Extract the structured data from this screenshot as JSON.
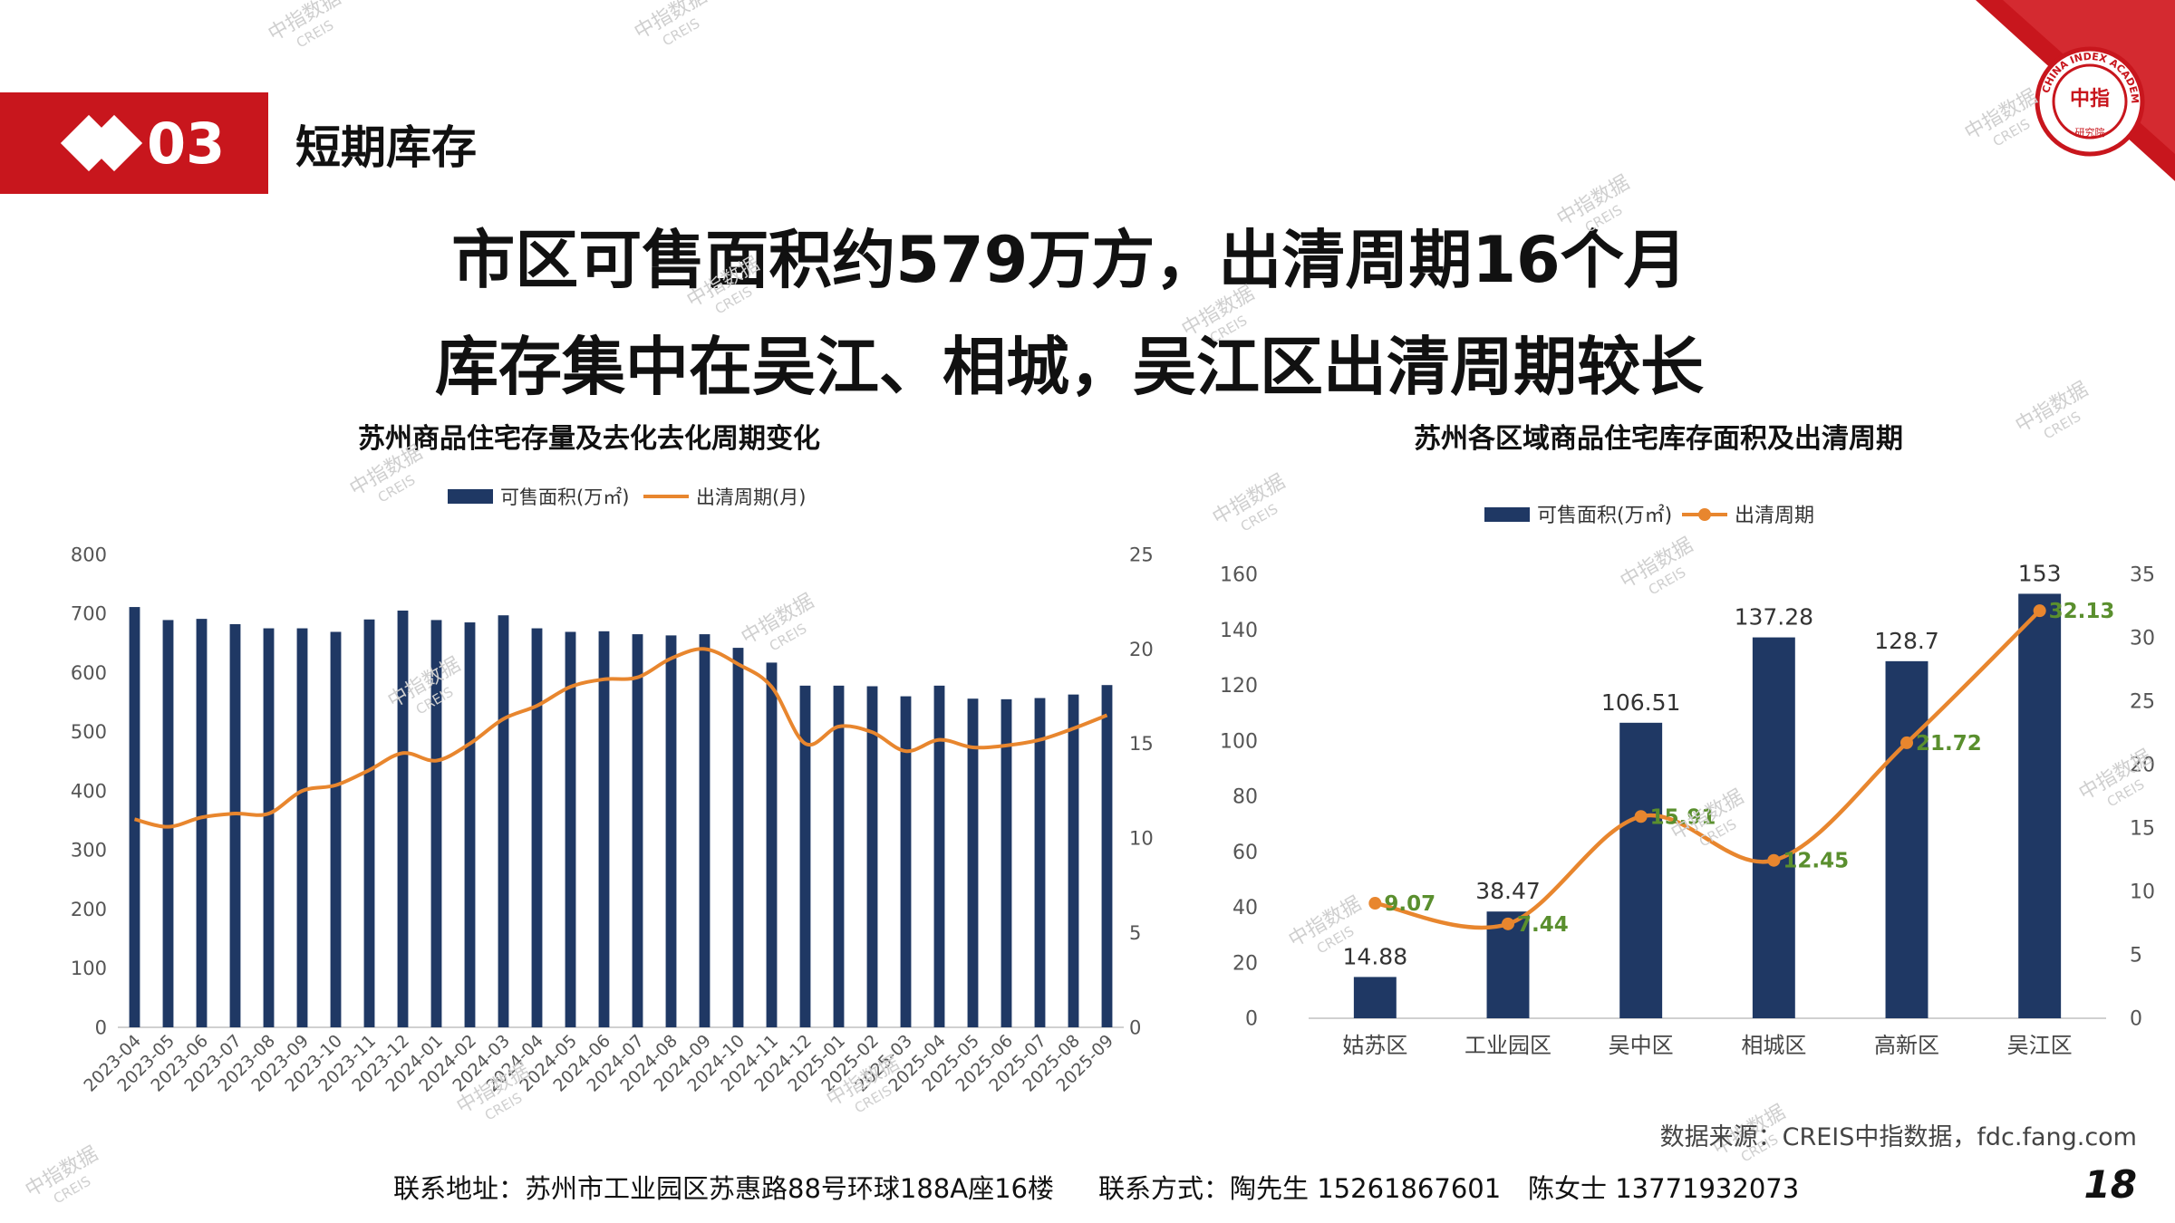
{
  "section": {
    "number": "03",
    "title": "短期库存"
  },
  "headlines": [
    "市区可售面积约579万方，出清周期16个月",
    "库存集中在吴江、相城，吴江区出清周期较长"
  ],
  "logo": {
    "ring_text": "CHINA INDEX ACADEMY",
    "center_text": "中指",
    "bottom_text": "研究院"
  },
  "watermark": {
    "main": "中指数据",
    "sub": "CREIS"
  },
  "colors": {
    "brand_red": "#c8161d",
    "bar": "#1f3864",
    "line": "#e8862e",
    "label_green": "#5a8f2e"
  },
  "chart_data": [
    {
      "type": "bar",
      "title": "苏州商品住宅存量及去化去化周期变化",
      "categories": [
        "2023-04",
        "2023-05",
        "2023-06",
        "2023-07",
        "2023-08",
        "2023-09",
        "2023-10",
        "2023-11",
        "2023-12",
        "2024-01",
        "2024-02",
        "2024-03",
        "2024-04",
        "2024-05",
        "2024-06",
        "2024-07",
        "2024-08",
        "2024-09",
        "2024-10",
        "2024-11",
        "2024-12",
        "2025-01",
        "2025-02",
        "2025-03",
        "2025-04",
        "2025-05",
        "2025-06",
        "2025-07",
        "2025-08",
        "2025-09"
      ],
      "series": [
        {
          "name": "可售面积(万㎡)",
          "type": "bar",
          "axis": "left",
          "values": [
            711,
            689,
            691,
            682,
            675,
            675,
            669,
            690,
            705,
            689,
            685,
            697,
            675,
            669,
            670,
            665,
            663,
            665,
            642,
            617,
            578,
            578,
            577,
            560,
            578,
            556,
            555,
            557,
            563,
            579
          ]
        },
        {
          "name": "出清周期(月)",
          "type": "line",
          "axis": "right",
          "values": [
            11.0,
            10.6,
            11.1,
            11.3,
            11.3,
            12.5,
            12.8,
            13.6,
            14.5,
            14.1,
            15.0,
            16.3,
            17.0,
            18.0,
            18.4,
            18.5,
            19.5,
            20.0,
            19.2,
            18.0,
            15.0,
            15.9,
            15.6,
            14.6,
            15.2,
            14.8,
            14.9,
            15.2,
            15.8,
            16.5
          ]
        }
      ],
      "y_left": {
        "min": 0,
        "max": 800,
        "ticks": [
          "0",
          "100",
          "200",
          "300",
          "400",
          "500",
          "600",
          "700",
          "800"
        ]
      },
      "y_right": {
        "min": 0,
        "max": 25,
        "ticks": [
          "0",
          "5",
          "10",
          "15",
          "20",
          "25"
        ]
      },
      "legend": "top-center",
      "grid": false
    },
    {
      "type": "bar",
      "title": "苏州各区域商品住宅库存面积及出清周期",
      "categories": [
        "姑苏区",
        "工业园区",
        "吴中区",
        "相城区",
        "高新区",
        "吴江区"
      ],
      "series": [
        {
          "name": "可售面积(万㎡)",
          "type": "bar",
          "axis": "left",
          "values": [
            14.88,
            38.47,
            106.51,
            137.28,
            128.7,
            153
          ]
        },
        {
          "name": "出清周期",
          "type": "line",
          "axis": "right",
          "values": [
            9.07,
            7.44,
            15.91,
            12.45,
            21.72,
            32.13
          ]
        }
      ],
      "bar_labels": [
        "14.88",
        "38.47",
        "106.51",
        "137.28",
        "128.7",
        "153"
      ],
      "line_labels": [
        "9.07",
        "7.44",
        "15.91",
        "12.45",
        "21.72",
        "32.13"
      ],
      "y_left": {
        "min": 0,
        "max": 160,
        "ticks": [
          "0",
          "20",
          "40",
          "60",
          "80",
          "100",
          "120",
          "140",
          "160"
        ]
      },
      "y_right": {
        "min": 0,
        "max": 35,
        "ticks": [
          "0",
          "5",
          "10",
          "15",
          "20",
          "25",
          "30",
          "35"
        ]
      },
      "legend": "top-center",
      "grid": false
    }
  ],
  "source": "数据来源：CREIS中指数据，fdc.fang.com",
  "footer": {
    "address": "联系地址：苏州市工业园区苏惠路88号环球188A座16楼",
    "contact": "联系方式：陶先生 15261867601",
    "contact2": "陈女士 13771932073"
  },
  "page_number": "18"
}
